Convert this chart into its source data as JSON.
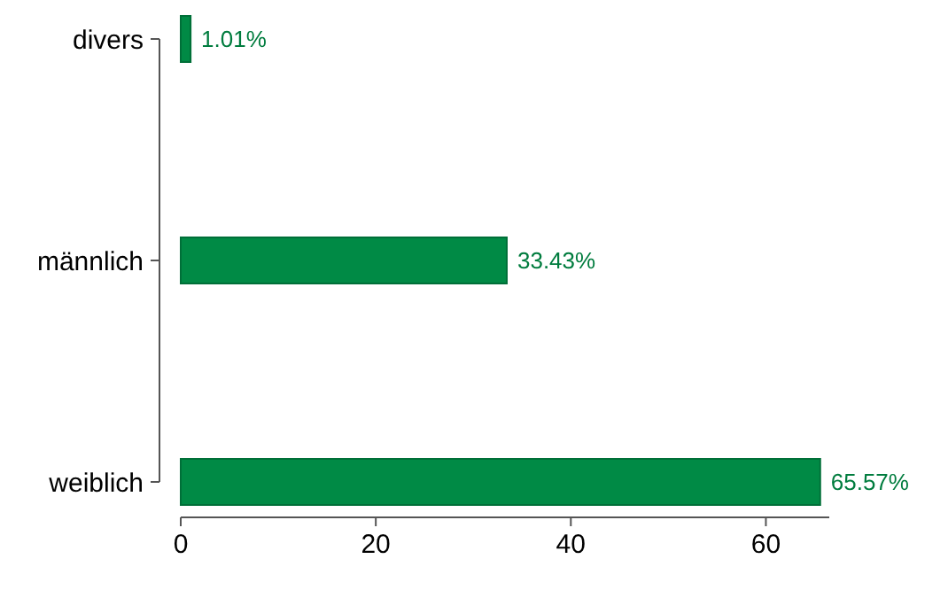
{
  "chart_data": {
    "type": "bar",
    "orientation": "horizontal",
    "categories": [
      "divers",
      "männlich",
      "weiblich"
    ],
    "values": [
      1.01,
      33.43,
      65.57
    ],
    "value_labels": [
      "1.01%",
      "33.43%",
      "65.57%"
    ],
    "color": "#008a45",
    "xlim": [
      0,
      66.5
    ],
    "xticks": [
      0,
      20,
      40,
      60
    ],
    "grid": false
  }
}
